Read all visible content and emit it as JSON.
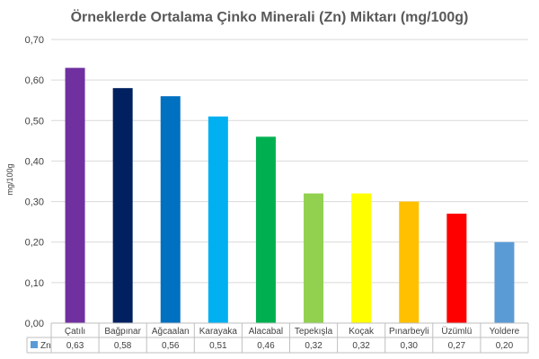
{
  "chart_data": {
    "type": "bar",
    "title": "Örneklerde Ortalama Çinko Minerali (Zn) Miktarı (mg/100g)",
    "xlabel": "",
    "ylabel": "mg/100g",
    "ylim": [
      0,
      0.7
    ],
    "yticks": [
      "0,00",
      "0,10",
      "0,20",
      "0,30",
      "0,40",
      "0,50",
      "0,60",
      "0,70"
    ],
    "grid": true,
    "legend": "data-table",
    "categories": [
      "Çatılı",
      "Bağpınar",
      "Ağcaalan",
      "Karayaka",
      "Alacabal",
      "Tepekışla",
      "Koçak",
      "Pınarbeyli",
      "Üzümlü",
      "Yoldere"
    ],
    "series": [
      {
        "name": "Zn",
        "values": [
          0.63,
          0.58,
          0.56,
          0.51,
          0.46,
          0.32,
          0.32,
          0.3,
          0.27,
          0.2
        ],
        "labels": [
          "0,63",
          "0,58",
          "0,56",
          "0,51",
          "0,46",
          "0,32",
          "0,32",
          "0,30",
          "0,27",
          "0,20"
        ],
        "legend_color": "#5b9bd5"
      }
    ],
    "bar_colors": [
      "#7030a0",
      "#002060",
      "#0070c0",
      "#00b0f0",
      "#00b050",
      "#92d050",
      "#ffff00",
      "#ffc000",
      "#ff0000",
      "#5b9bd5"
    ]
  }
}
